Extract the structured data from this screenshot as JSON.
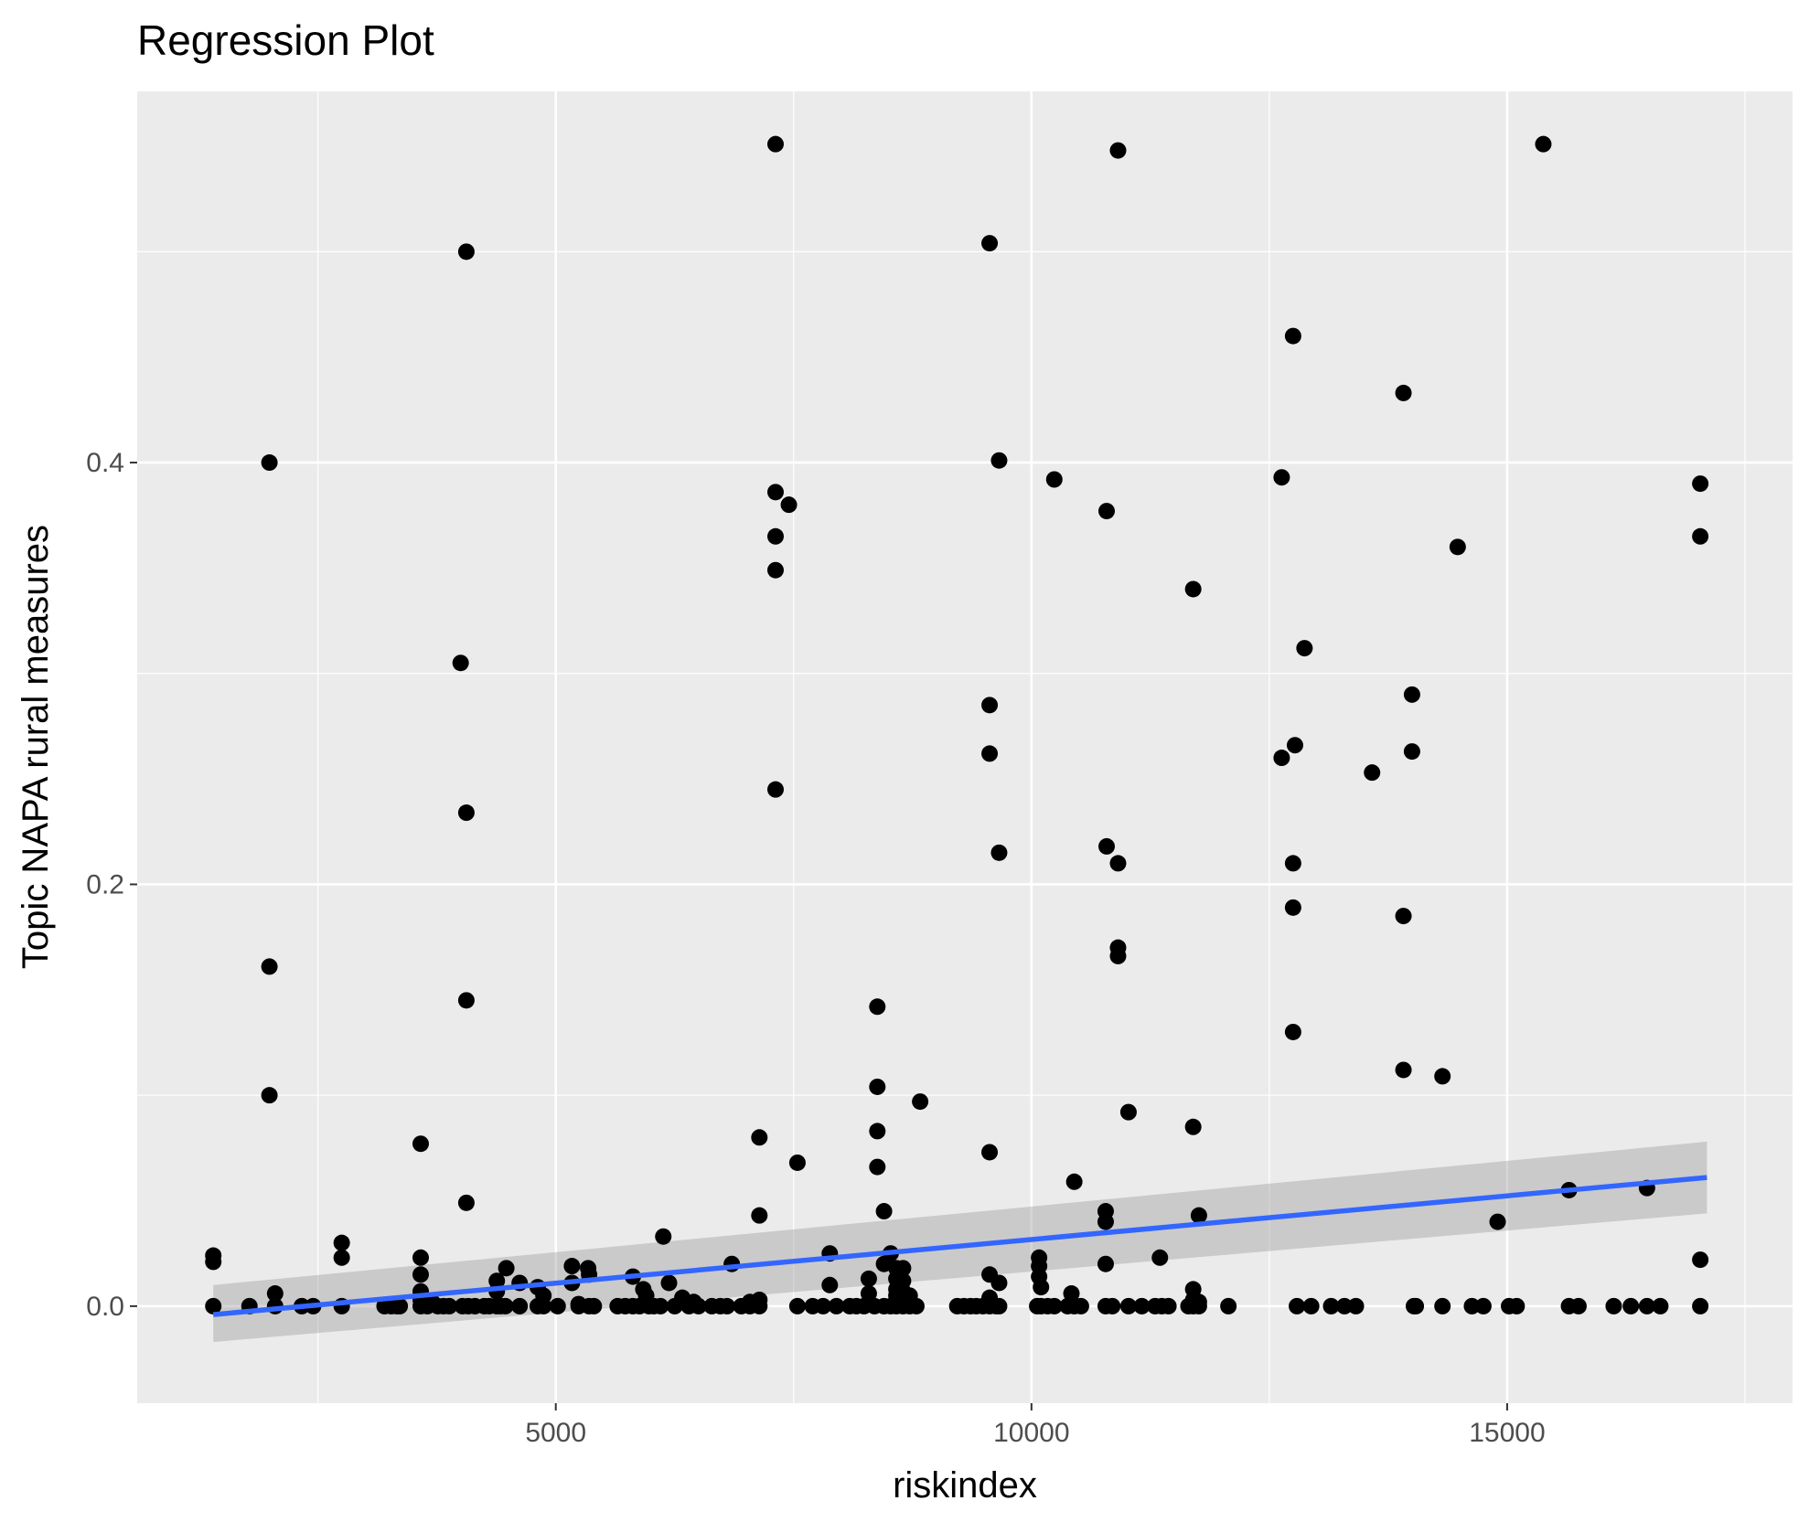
{
  "chart_data": {
    "type": "scatter",
    "title": "Regression Plot",
    "xlabel": "riskindex",
    "ylabel": "Topic NAPA rural measures",
    "xlim": [
      600,
      18000
    ],
    "ylim": [
      -0.046,
      0.576
    ],
    "x_ticks": [
      5000,
      10000,
      15000
    ],
    "x_tick_labels": [
      "5000",
      "10000",
      "15000"
    ],
    "x_minor_ticks": [
      2500,
      7500,
      12500,
      17500
    ],
    "y_ticks": [
      0.0,
      0.2,
      0.4
    ],
    "y_tick_labels": [
      "0.0",
      "0.2",
      "0.4"
    ],
    "y_minor_ticks": [
      0.1,
      0.3,
      0.5
    ],
    "grid": true,
    "background": "#ebebeb",
    "point_color": "#000000",
    "line_color": "#3366ff",
    "band_color": "#999999",
    "regression": {
      "x": [
        1400,
        17100
      ],
      "y": [
        -0.004,
        0.061
      ],
      "ci_lower": [
        -0.017,
        0.044
      ],
      "ci_upper": [
        0.01,
        0.078
      ]
    },
    "points": [
      [
        1400,
        0.024
      ],
      [
        1400,
        0.021
      ],
      [
        1400,
        0.0
      ],
      [
        1780,
        0.0
      ],
      [
        1990,
        0.4
      ],
      [
        1990,
        0.161
      ],
      [
        1990,
        0.1
      ],
      [
        2050,
        0.006
      ],
      [
        2050,
        0.0
      ],
      [
        2330,
        0.0
      ],
      [
        2450,
        0.0
      ],
      [
        2750,
        0.03
      ],
      [
        2750,
        0.023
      ],
      [
        2750,
        0.0
      ],
      [
        3200,
        0.0
      ],
      [
        3270,
        0.0
      ],
      [
        3330,
        0.0
      ],
      [
        3360,
        0.0
      ],
      [
        3580,
        0.077
      ],
      [
        3580,
        0.023
      ],
      [
        3580,
        0.015
      ],
      [
        3580,
        0.007
      ],
      [
        3580,
        0.003
      ],
      [
        3580,
        0.0
      ],
      [
        3650,
        0.0
      ],
      [
        3700,
        0.002
      ],
      [
        3760,
        0.0
      ],
      [
        3820,
        0.0
      ],
      [
        3880,
        0.0
      ],
      [
        4000,
        0.305
      ],
      [
        4020,
        0.0
      ],
      [
        4060,
        0.5
      ],
      [
        4060,
        0.234
      ],
      [
        4060,
        0.145
      ],
      [
        4060,
        0.049
      ],
      [
        4080,
        0.0
      ],
      [
        4150,
        0.0
      ],
      [
        4250,
        0.0
      ],
      [
        4300,
        0.0
      ],
      [
        4380,
        0.012
      ],
      [
        4380,
        0.007
      ],
      [
        4380,
        0.0
      ],
      [
        4420,
        0.0
      ],
      [
        4470,
        0.0
      ],
      [
        4480,
        0.018
      ],
      [
        4620,
        0.011
      ],
      [
        4620,
        0.0
      ],
      [
        4810,
        0.009
      ],
      [
        4810,
        0.0
      ],
      [
        4870,
        0.005
      ],
      [
        4870,
        0.0
      ],
      [
        5020,
        0.0
      ],
      [
        5170,
        0.019
      ],
      [
        5170,
        0.011
      ],
      [
        5240,
        0.001
      ],
      [
        5240,
        0.0
      ],
      [
        5340,
        0.018
      ],
      [
        5350,
        0.015
      ],
      [
        5350,
        0.0
      ],
      [
        5400,
        0.0
      ],
      [
        5650,
        0.0
      ],
      [
        5730,
        0.0
      ],
      [
        5810,
        0.0
      ],
      [
        5810,
        0.014
      ],
      [
        5880,
        0.0
      ],
      [
        5920,
        0.008
      ],
      [
        5950,
        0.005
      ],
      [
        5980,
        0.0
      ],
      [
        6030,
        0.0
      ],
      [
        6100,
        0.0
      ],
      [
        6130,
        0.033
      ],
      [
        6190,
        0.011
      ],
      [
        6250,
        0.0
      ],
      [
        6330,
        0.004
      ],
      [
        6400,
        0.0
      ],
      [
        6450,
        0.002
      ],
      [
        6500,
        0.0
      ],
      [
        6640,
        0.0
      ],
      [
        6730,
        0.0
      ],
      [
        6800,
        0.0
      ],
      [
        6850,
        0.02
      ],
      [
        6950,
        0.0
      ],
      [
        7040,
        0.002
      ],
      [
        7040,
        0.0
      ],
      [
        7140,
        0.08
      ],
      [
        7140,
        0.043
      ],
      [
        7140,
        0.003
      ],
      [
        7140,
        0.0
      ],
      [
        7310,
        0.551
      ],
      [
        7310,
        0.386
      ],
      [
        7310,
        0.365
      ],
      [
        7310,
        0.349
      ],
      [
        7310,
        0.245
      ],
      [
        7450,
        0.38
      ],
      [
        7540,
        0.068
      ],
      [
        7540,
        0.0
      ],
      [
        7700,
        0.0
      ],
      [
        7810,
        0.0
      ],
      [
        7880,
        0.025
      ],
      [
        7880,
        0.01
      ],
      [
        7950,
        0.0
      ],
      [
        8090,
        0.0
      ],
      [
        8160,
        0.0
      ],
      [
        8240,
        0.0
      ],
      [
        8290,
        0.013
      ],
      [
        8290,
        0.006
      ],
      [
        8350,
        0.0
      ],
      [
        8380,
        0.142
      ],
      [
        8380,
        0.104
      ],
      [
        8380,
        0.083
      ],
      [
        8380,
        0.066
      ],
      [
        8450,
        0.045
      ],
      [
        8450,
        0.02
      ],
      [
        8450,
        0.0
      ],
      [
        8520,
        0.025
      ],
      [
        8520,
        0.0
      ],
      [
        8580,
        0.018
      ],
      [
        8580,
        0.013
      ],
      [
        8580,
        0.008
      ],
      [
        8580,
        0.005
      ],
      [
        8580,
        0.002
      ],
      [
        8580,
        0.0
      ],
      [
        8650,
        0.018
      ],
      [
        8650,
        0.012
      ],
      [
        8650,
        0.007
      ],
      [
        8650,
        0.003
      ],
      [
        8650,
        0.0
      ],
      [
        8720,
        0.005
      ],
      [
        8720,
        0.0
      ],
      [
        8790,
        0.0
      ],
      [
        8830,
        0.097
      ],
      [
        9220,
        0.0
      ],
      [
        9290,
        0.0
      ],
      [
        9360,
        0.0
      ],
      [
        9420,
        0.0
      ],
      [
        9490,
        0.0
      ],
      [
        9560,
        0.504
      ],
      [
        9560,
        0.285
      ],
      [
        9560,
        0.262
      ],
      [
        9560,
        0.073
      ],
      [
        9560,
        0.015
      ],
      [
        9560,
        0.004
      ],
      [
        9560,
        0.0
      ],
      [
        9630,
        0.0
      ],
      [
        9660,
        0.401
      ],
      [
        9660,
        0.215
      ],
      [
        9660,
        0.011
      ],
      [
        9660,
        0.0
      ],
      [
        10060,
        0.0
      ],
      [
        10080,
        0.023
      ],
      [
        10080,
        0.019
      ],
      [
        10080,
        0.014
      ],
      [
        10100,
        0.009
      ],
      [
        10100,
        0.0
      ],
      [
        10170,
        0.0
      ],
      [
        10240,
        0.392
      ],
      [
        10240,
        0.0
      ],
      [
        10380,
        0.0
      ],
      [
        10420,
        0.006
      ],
      [
        10450,
        0.059
      ],
      [
        10450,
        0.0
      ],
      [
        10520,
        0.0
      ],
      [
        10780,
        0.045
      ],
      [
        10780,
        0.04
      ],
      [
        10780,
        0.02
      ],
      [
        10780,
        0.0
      ],
      [
        10790,
        0.377
      ],
      [
        10790,
        0.218
      ],
      [
        10850,
        0.0
      ],
      [
        10910,
        0.548
      ],
      [
        10910,
        0.21
      ],
      [
        10910,
        0.17
      ],
      [
        10910,
        0.166
      ],
      [
        11020,
        0.092
      ],
      [
        11020,
        0.0
      ],
      [
        11160,
        0.0
      ],
      [
        11300,
        0.0
      ],
      [
        11350,
        0.023
      ],
      [
        11370,
        0.0
      ],
      [
        11440,
        0.0
      ],
      [
        11650,
        0.0
      ],
      [
        11700,
        0.34
      ],
      [
        11700,
        0.085
      ],
      [
        11700,
        0.008
      ],
      [
        11700,
        0.003
      ],
      [
        11700,
        0.0
      ],
      [
        11760,
        0.043
      ],
      [
        11760,
        0.002
      ],
      [
        11760,
        0.0
      ],
      [
        12070,
        0.0
      ],
      [
        12630,
        0.393
      ],
      [
        12630,
        0.26
      ],
      [
        12750,
        0.46
      ],
      [
        12750,
        0.21
      ],
      [
        12750,
        0.189
      ],
      [
        12750,
        0.13
      ],
      [
        12770,
        0.266
      ],
      [
        12790,
        0.0
      ],
      [
        12870,
        0.312
      ],
      [
        12940,
        0.0
      ],
      [
        13150,
        0.0
      ],
      [
        13290,
        0.0
      ],
      [
        13410,
        0.0
      ],
      [
        13580,
        0.253
      ],
      [
        13910,
        0.433
      ],
      [
        13910,
        0.185
      ],
      [
        13910,
        0.112
      ],
      [
        14000,
        0.29
      ],
      [
        14000,
        0.263
      ],
      [
        14020,
        0.0
      ],
      [
        14040,
        0.0
      ],
      [
        14320,
        0.109
      ],
      [
        14320,
        0.0
      ],
      [
        14480,
        0.36
      ],
      [
        14630,
        0.0
      ],
      [
        14750,
        0.0
      ],
      [
        14900,
        0.04
      ],
      [
        15020,
        0.0
      ],
      [
        15100,
        0.0
      ],
      [
        15380,
        0.551
      ],
      [
        15650,
        0.055
      ],
      [
        15650,
        0.0
      ],
      [
        15750,
        0.0
      ],
      [
        16120,
        0.0
      ],
      [
        16300,
        0.0
      ],
      [
        16470,
        0.056
      ],
      [
        16470,
        0.0
      ],
      [
        16610,
        0.0
      ],
      [
        17030,
        0.39
      ],
      [
        17030,
        0.365
      ],
      [
        17030,
        0.022
      ],
      [
        17030,
        0.0
      ]
    ]
  }
}
